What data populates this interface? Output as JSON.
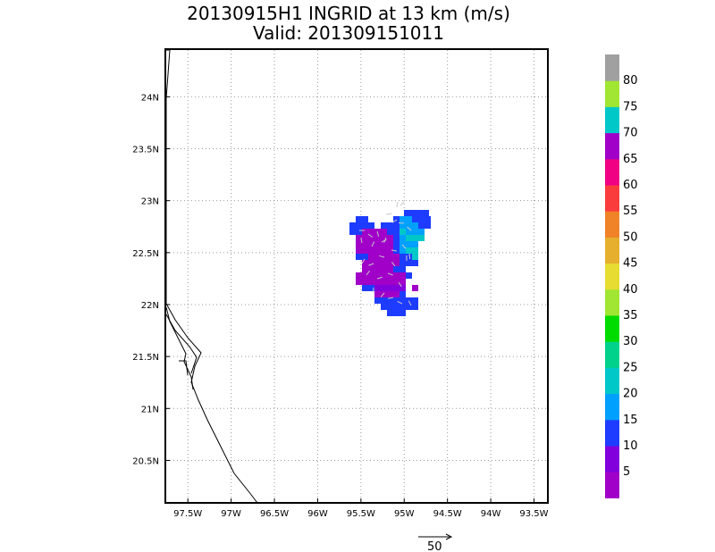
{
  "title": {
    "line1": "20130915H1 INGRID at 13 km (m/s)",
    "line2": "Valid: 201309151011"
  },
  "map": {
    "lon_range": [
      -97.75,
      -93.35
    ],
    "lat_range": [
      20.1,
      24.45
    ],
    "lon_ticks": [
      {
        "value": -97.5,
        "label": "97.5W"
      },
      {
        "value": -97.0,
        "label": "97W"
      },
      {
        "value": -96.5,
        "label": "96.5W"
      },
      {
        "value": -96.0,
        "label": "96W"
      },
      {
        "value": -95.5,
        "label": "95.5W"
      },
      {
        "value": -95.0,
        "label": "95W"
      },
      {
        "value": -94.5,
        "label": "94.5W"
      },
      {
        "value": -94.0,
        "label": "94W"
      },
      {
        "value": -93.5,
        "label": "93.5W"
      }
    ],
    "lat_ticks": [
      {
        "value": 24.0,
        "label": "24N"
      },
      {
        "value": 23.5,
        "label": "23.5N"
      },
      {
        "value": 23.0,
        "label": "23N"
      },
      {
        "value": 22.5,
        "label": "22.5N"
      },
      {
        "value": 22.0,
        "label": "22N"
      },
      {
        "value": 21.5,
        "label": "21.5N"
      },
      {
        "value": 21.0,
        "label": "21N"
      },
      {
        "value": 20.5,
        "label": "20.5N"
      }
    ],
    "grid": "dotted"
  },
  "colorbar": {
    "colors": [
      "#a000c8",
      "#8200dc",
      "#1e3cff",
      "#00a0ff",
      "#00c8c8",
      "#00d28c",
      "#00dc00",
      "#a0e632",
      "#e6dc32",
      "#e6af2d",
      "#f08228",
      "#fa3c3c",
      "#f00082",
      "#a000c8",
      "#00c8c8",
      "#a0e632",
      "#a0a0a0"
    ],
    "labels": [
      "5",
      "10",
      "15",
      "20",
      "25",
      "30",
      "35",
      "40",
      "45",
      "50",
      "55",
      "60",
      "65",
      "70",
      "75",
      "80"
    ]
  },
  "reference_vector": {
    "label": "50"
  },
  "wind_cells": {
    "colors": {
      "purple": "#a000c8",
      "violet": "#8200dc",
      "blue": "#1e3cff",
      "lightblue": "#00a0ff",
      "cyan": "#00c8c8"
    }
  }
}
